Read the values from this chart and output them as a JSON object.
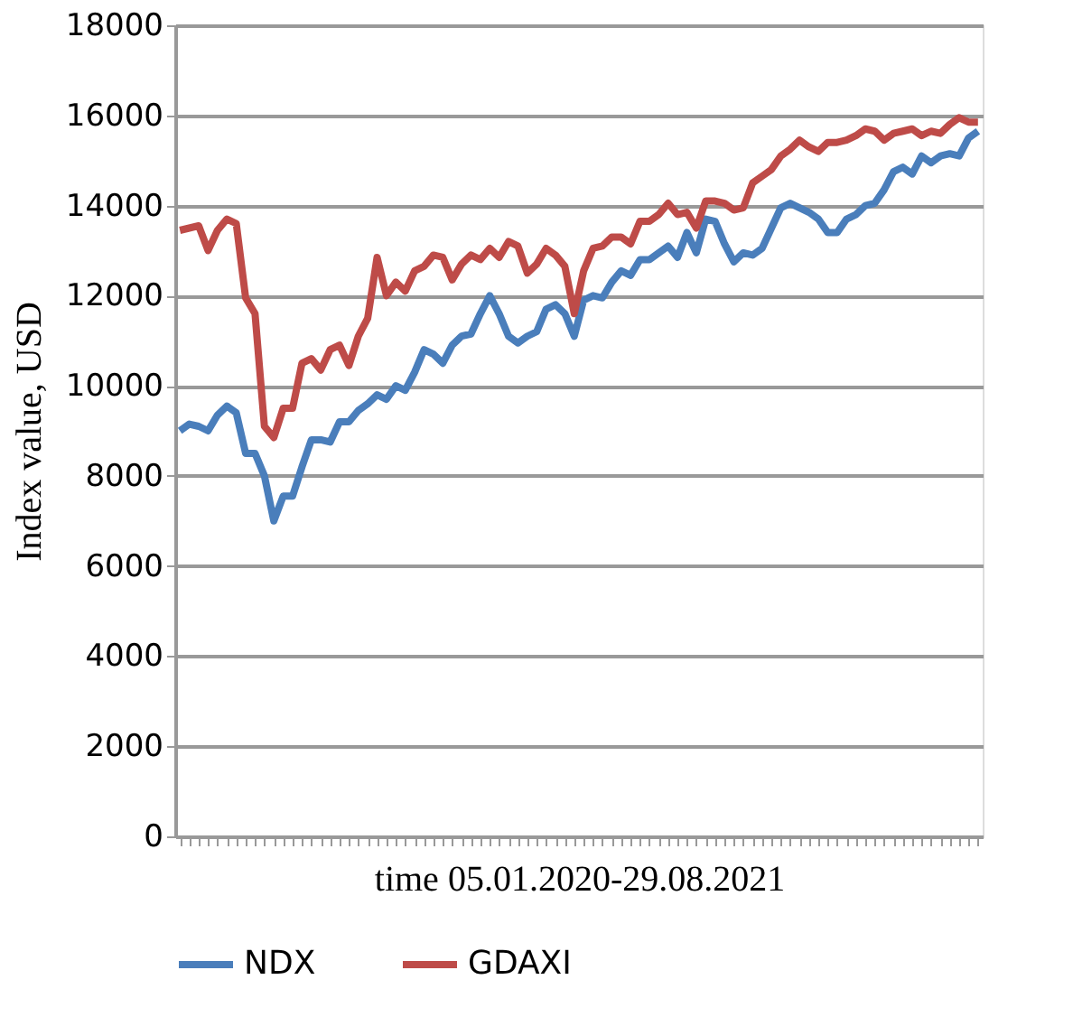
{
  "chart_data": {
    "type": "line",
    "xlabel": "time 05.01.2020-29.08.2021",
    "ylabel": "Index value, USD",
    "categories": [
      null,
      null,
      null,
      null,
      null,
      null,
      null,
      null,
      null,
      null,
      null,
      null,
      null,
      null,
      null,
      null,
      null,
      null,
      null,
      null,
      null,
      null,
      null,
      null,
      null,
      null,
      null,
      null,
      null,
      null,
      null,
      null,
      null,
      null,
      null,
      null,
      null,
      null,
      null,
      null,
      null,
      null,
      null,
      null,
      null,
      null,
      null,
      null,
      null,
      null,
      null,
      null,
      null,
      null,
      null,
      null,
      null,
      null,
      null,
      null,
      null,
      null,
      null,
      null,
      null,
      null,
      null,
      null,
      null,
      null,
      null,
      null,
      null,
      null,
      null,
      null,
      null,
      null,
      null,
      null,
      null,
      null,
      null,
      null,
      null,
      null
    ],
    "series": [
      {
        "name": "NDX",
        "color": "#4a7ebb",
        "values": [
          9000,
          9150,
          9100,
          9000,
          9350,
          9550,
          9400,
          8500,
          8500,
          8000,
          7000,
          7550,
          7550,
          8200,
          8800,
          8800,
          8750,
          9200,
          9200,
          9450,
          9600,
          9800,
          9700,
          10000,
          9900,
          10300,
          10800,
          10700,
          10500,
          10900,
          11100,
          11150,
          11600,
          12000,
          11600,
          11100,
          10950,
          11100,
          11200,
          11700,
          11800,
          11600,
          11100,
          11900,
          12000,
          11950,
          12300,
          12550,
          12450,
          12800,
          12800,
          12950,
          13100,
          12850,
          13400,
          12950,
          13700,
          13650,
          13150,
          12750,
          12950,
          12900,
          13050,
          13500,
          13950,
          14050,
          13950,
          13850,
          13700,
          13400,
          13400,
          13700,
          13800,
          14000,
          14050,
          14350,
          14750,
          14850,
          14700,
          15100,
          14950,
          15100,
          15150,
          15100,
          15500,
          15650
        ]
      },
      {
        "name": "GDAXI",
        "color": "#be4b48",
        "values": [
          13450,
          13500,
          13550,
          13000,
          13450,
          13700,
          13600,
          11950,
          11600,
          9100,
          8850,
          9500,
          9500,
          10500,
          10600,
          10350,
          10800,
          10900,
          10450,
          11100,
          11500,
          12850,
          12000,
          12300,
          12100,
          12550,
          12650,
          12900,
          12850,
          12350,
          12700,
          12900,
          12800,
          13050,
          12850,
          13200,
          13100,
          12500,
          12700,
          13050,
          12900,
          12650,
          11600,
          12550,
          13050,
          13100,
          13300,
          13300,
          13150,
          13650,
          13650,
          13800,
          14050,
          13800,
          13850,
          13500,
          14100,
          14100,
          14050,
          13900,
          13950,
          14500,
          14650,
          14800,
          15100,
          15250,
          15450,
          15300,
          15200,
          15400,
          15400,
          15450,
          15550,
          15700,
          15650,
          15450,
          15600,
          15650,
          15700,
          15550,
          15650,
          15600,
          15800,
          15950,
          15850,
          15850
        ]
      }
    ],
    "ylim": [
      0,
      18000
    ],
    "yticks": [
      0,
      2000,
      4000,
      6000,
      8000,
      10000,
      12000,
      14000,
      16000,
      18000
    ],
    "grid": "y",
    "legend": "bottom",
    "tick_labels": "y",
    "marker": "none",
    "line_style": "solid"
  }
}
